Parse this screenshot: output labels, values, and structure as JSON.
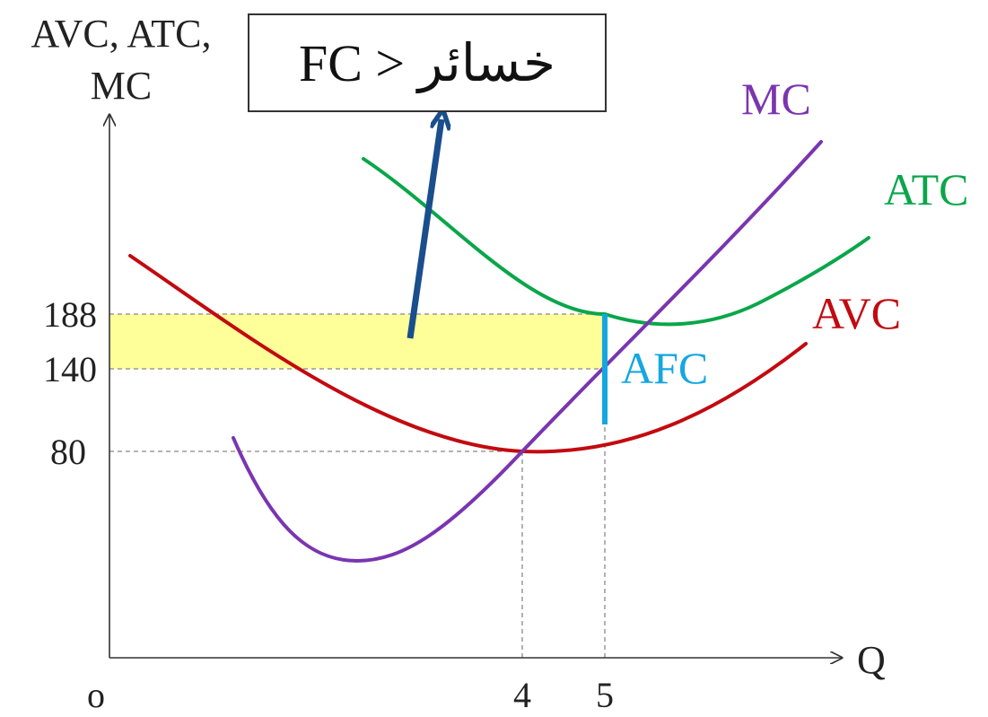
{
  "chart_data": {
    "type": "line",
    "y_axis_label_line1": "AVC, ATC,",
    "y_axis_label_line2": "MC",
    "x_axis_label": "Q",
    "origin_label": "o",
    "y_ticks": [
      {
        "label": "188",
        "value": 188
      },
      {
        "label": "140",
        "value": 140
      },
      {
        "label": "80",
        "value": 80
      }
    ],
    "x_ticks": [
      {
        "label": "4",
        "value": 4
      },
      {
        "label": "5",
        "value": 5
      }
    ],
    "series": [
      {
        "name": "MC",
        "color": "#7a35b0"
      },
      {
        "name": "ATC",
        "color": "#0aa64a"
      },
      {
        "name": "AVC",
        "color": "#c20a10"
      }
    ],
    "afc_label": "AFC",
    "afc_color": "#15a7e0",
    "loss_area": {
      "y_from": 140,
      "y_to": 188,
      "x_to": 5,
      "color": "#ffff99"
    },
    "annotation_box_text": "FC > خسائر",
    "arrow_color": "#1a4e8c",
    "grid": false,
    "legend": "none"
  }
}
